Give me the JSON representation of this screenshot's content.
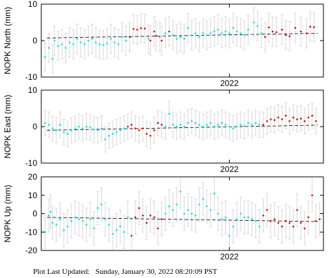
{
  "footer": {
    "label": "Plot Last Updated:",
    "datetime": "Sunday, January 30, 2022 08:20:09 PST"
  },
  "colors": {
    "early": "#00e8e8",
    "late": "#e00000",
    "errorbar": "#d8d8d8",
    "trend": "#000000"
  },
  "chart_data": [
    {
      "type": "scatter",
      "ylabel": "NOPK North (mm)",
      "xlabel": "",
      "x_tick_labels": [
        "2022"
      ],
      "y_tick_labels": [
        "10",
        "0",
        "-10"
      ],
      "ylim": [
        -10,
        10
      ],
      "y_ticks": [
        -10,
        0,
        10
      ],
      "error": 4,
      "trend": [
        0.7,
        2.0
      ],
      "series": [
        {
          "color_key": "early",
          "points": [
            [
              0.02,
              -4.5
            ],
            [
              0.04,
              -2
            ],
            [
              0.06,
              -5
            ],
            [
              0.07,
              0
            ],
            [
              0.09,
              -1.5
            ],
            [
              0.11,
              -1
            ],
            [
              0.13,
              -2
            ],
            [
              0.15,
              -0.5
            ],
            [
              0.17,
              -1
            ],
            [
              0.19,
              0.5
            ],
            [
              0.21,
              -0.5
            ],
            [
              0.23,
              -1
            ],
            [
              0.25,
              0
            ],
            [
              0.27,
              0.5
            ],
            [
              0.29,
              -0.5
            ],
            [
              0.31,
              -1
            ],
            [
              0.33,
              -1.2
            ],
            [
              0.35,
              -0.8
            ],
            [
              0.37,
              0.5
            ],
            [
              0.39,
              -0.5
            ],
            [
              0.41,
              -1
            ],
            [
              0.43,
              1
            ],
            [
              0.45,
              0
            ],
            [
              0.57,
              0.5
            ],
            [
              0.63,
              1
            ],
            [
              0.66,
              2
            ],
            [
              0.7,
              1.5
            ],
            [
              0.72,
              0.5
            ],
            [
              0.74,
              1
            ],
            [
              0.76,
              0.5
            ],
            [
              0.78,
              3.5
            ],
            [
              0.8,
              1.5
            ],
            [
              0.82,
              2
            ],
            [
              0.84,
              1
            ],
            [
              0.86,
              2
            ],
            [
              0.88,
              1.5
            ],
            [
              0.9,
              2
            ],
            [
              0.92,
              2.5
            ],
            [
              0.94,
              3
            ],
            [
              0.96,
              2
            ],
            [
              0.98,
              2.5
            ],
            [
              1.0,
              2
            ],
            [
              1.02,
              3.5
            ],
            [
              1.04,
              2.5
            ],
            [
              1.06,
              2
            ],
            [
              1.08,
              1.5
            ],
            [
              1.1,
              3
            ],
            [
              1.13,
              5
            ],
            [
              1.15,
              4
            ],
            [
              1.17,
              2
            ]
          ]
        },
        {
          "color_key": "late",
          "points": [
            [
              0.47,
              1
            ],
            [
              0.49,
              3.2
            ],
            [
              0.51,
              3
            ],
            [
              0.53,
              3.4
            ],
            [
              0.55,
              3.3
            ],
            [
              0.58,
              0
            ],
            [
              0.6,
              2.5
            ],
            [
              0.61,
              1.3
            ],
            [
              0.64,
              0
            ],
            [
              0.68,
              2.5
            ],
            [
              1.19,
              1
            ],
            [
              1.21,
              3.6
            ],
            [
              1.23,
              2.5
            ],
            [
              1.25,
              2.3
            ],
            [
              1.28,
              3
            ],
            [
              1.3,
              1.5
            ],
            [
              1.32,
              1.2
            ],
            [
              1.35,
              3.5
            ],
            [
              1.38,
              2.5
            ],
            [
              1.41,
              2
            ],
            [
              1.43,
              3.8
            ],
            [
              1.45,
              3.7
            ]
          ]
        }
      ]
    },
    {
      "type": "scatter",
      "ylabel": "NOPK East (mm)",
      "xlabel": "",
      "x_tick_labels": [
        "2022"
      ],
      "y_tick_labels": [
        "10",
        "0",
        "-10"
      ],
      "ylim": [
        -10,
        10
      ],
      "y_ticks": [
        -10,
        0,
        10
      ],
      "error": 3.5,
      "trend": [
        -1.0,
        0.4
      ],
      "series": [
        {
          "color_key": "early",
          "points": [
            [
              0.02,
              1
            ],
            [
              0.04,
              0.5
            ],
            [
              0.06,
              -0.5
            ],
            [
              0.08,
              -1
            ],
            [
              0.1,
              0.5
            ],
            [
              0.12,
              -1.5
            ],
            [
              0.14,
              -2
            ],
            [
              0.16,
              -1
            ],
            [
              0.18,
              -0.5
            ],
            [
              0.2,
              0
            ],
            [
              0.22,
              -0.5
            ],
            [
              0.24,
              0
            ],
            [
              0.26,
              -0.2
            ],
            [
              0.28,
              -0.8
            ],
            [
              0.3,
              -1
            ],
            [
              0.32,
              -0.5
            ],
            [
              0.34,
              -3.5
            ],
            [
              0.36,
              -2.5
            ],
            [
              0.38,
              -2
            ],
            [
              0.4,
              -1.5
            ],
            [
              0.42,
              -1
            ],
            [
              0.44,
              -0.5
            ],
            [
              0.66,
              0
            ],
            [
              0.68,
              3.5
            ],
            [
              0.7,
              0.5
            ],
            [
              0.72,
              0
            ],
            [
              0.74,
              0.5
            ],
            [
              0.76,
              0
            ],
            [
              0.78,
              1
            ],
            [
              0.8,
              1.5
            ],
            [
              0.82,
              1
            ],
            [
              0.84,
              0.5
            ],
            [
              0.86,
              0
            ],
            [
              0.88,
              0.5
            ],
            [
              0.9,
              1
            ],
            [
              0.92,
              0
            ],
            [
              0.94,
              0.5
            ],
            [
              0.96,
              1
            ],
            [
              0.98,
              0.5
            ],
            [
              1.0,
              0
            ],
            [
              1.02,
              -0.5
            ],
            [
              1.04,
              0
            ],
            [
              1.06,
              0.5
            ],
            [
              1.08,
              0.2
            ],
            [
              1.1,
              1
            ],
            [
              1.12,
              0.5
            ],
            [
              1.14,
              1
            ],
            [
              1.16,
              0.5
            ]
          ]
        },
        {
          "color_key": "late",
          "points": [
            [
              0.46,
              0
            ],
            [
              0.48,
              0.5
            ],
            [
              0.5,
              -0.5
            ],
            [
              0.52,
              -1
            ],
            [
              0.54,
              -0.5
            ],
            [
              0.56,
              -2
            ],
            [
              0.58,
              -2.5
            ],
            [
              0.6,
              -1
            ],
            [
              0.62,
              1
            ],
            [
              0.64,
              0.5
            ],
            [
              1.18,
              0.5
            ],
            [
              1.2,
              1.5
            ],
            [
              1.22,
              2
            ],
            [
              1.24,
              1.8
            ],
            [
              1.26,
              2.5
            ],
            [
              1.28,
              2
            ],
            [
              1.3,
              3
            ],
            [
              1.32,
              1.5
            ],
            [
              1.34,
              2.5
            ],
            [
              1.36,
              2
            ],
            [
              1.38,
              2.2
            ],
            [
              1.4,
              1.5
            ],
            [
              1.42,
              2.5
            ],
            [
              1.44,
              3
            ],
            [
              1.46,
              1.5
            ]
          ]
        }
      ]
    },
    {
      "type": "scatter",
      "ylabel": "NOPK Up (mm)",
      "xlabel": "",
      "x_tick_labels": [
        "2022"
      ],
      "y_tick_labels": [
        "20",
        "10",
        "0",
        "-10",
        "-20"
      ],
      "ylim": [
        -20,
        20
      ],
      "y_ticks": [
        -20,
        -10,
        0,
        10,
        20
      ],
      "error": 9,
      "trend": [
        -2.0,
        -4.3
      ],
      "series": [
        {
          "color_key": "early",
          "points": [
            [
              0.02,
              -10
            ],
            [
              0.04,
              -1
            ],
            [
              0.05,
              1
            ],
            [
              0.06,
              -5
            ],
            [
              0.08,
              -6
            ],
            [
              0.1,
              -3
            ],
            [
              0.12,
              -9
            ],
            [
              0.14,
              -7
            ],
            [
              0.16,
              -4
            ],
            [
              0.18,
              -2
            ],
            [
              0.2,
              -3
            ],
            [
              0.22,
              -4
            ],
            [
              0.24,
              -6
            ],
            [
              0.26,
              -3
            ],
            [
              0.28,
              -8
            ],
            [
              0.3,
              3
            ],
            [
              0.32,
              5
            ],
            [
              0.34,
              -3
            ],
            [
              0.36,
              -6
            ],
            [
              0.38,
              -11
            ],
            [
              0.4,
              -9
            ],
            [
              0.42,
              -7
            ],
            [
              0.44,
              -10
            ],
            [
              0.46,
              -2
            ],
            [
              0.66,
              0
            ],
            [
              0.68,
              4
            ],
            [
              0.7,
              2
            ],
            [
              0.72,
              5
            ],
            [
              0.74,
              12
            ],
            [
              0.76,
              0
            ],
            [
              0.78,
              2
            ],
            [
              0.8,
              0
            ],
            [
              0.82,
              -1
            ],
            [
              0.84,
              5
            ],
            [
              0.86,
              8
            ],
            [
              0.88,
              4
            ],
            [
              0.9,
              2
            ],
            [
              0.92,
              11
            ],
            [
              0.94,
              0
            ],
            [
              0.96,
              -3
            ],
            [
              0.98,
              -2
            ],
            [
              1.0,
              -12
            ],
            [
              1.02,
              -7
            ],
            [
              1.04,
              -3
            ],
            [
              1.06,
              0
            ],
            [
              1.08,
              -2
            ],
            [
              1.1,
              -2
            ],
            [
              1.12,
              -3
            ],
            [
              1.14,
              -4
            ],
            [
              1.16,
              -7
            ]
          ]
        },
        {
          "color_key": "late",
          "points": [
            [
              0.48,
              -12
            ],
            [
              0.5,
              -2
            ],
            [
              0.52,
              3
            ],
            [
              0.54,
              -1
            ],
            [
              0.56,
              -5
            ],
            [
              0.58,
              -1
            ],
            [
              0.6,
              -2
            ],
            [
              0.62,
              -8
            ],
            [
              0.64,
              -3
            ],
            [
              1.18,
              -1
            ],
            [
              1.2,
              2
            ],
            [
              1.22,
              -4
            ],
            [
              1.24,
              -3
            ],
            [
              1.26,
              -5
            ],
            [
              1.28,
              -7
            ],
            [
              1.3,
              -4
            ],
            [
              1.32,
              -5
            ],
            [
              1.34,
              -7
            ],
            [
              1.36,
              2
            ],
            [
              1.38,
              -5
            ],
            [
              1.4,
              -8
            ],
            [
              1.42,
              -2
            ],
            [
              1.44,
              10
            ],
            [
              1.46,
              -4
            ],
            [
              1.48,
              -3
            ]
          ]
        }
      ]
    }
  ]
}
